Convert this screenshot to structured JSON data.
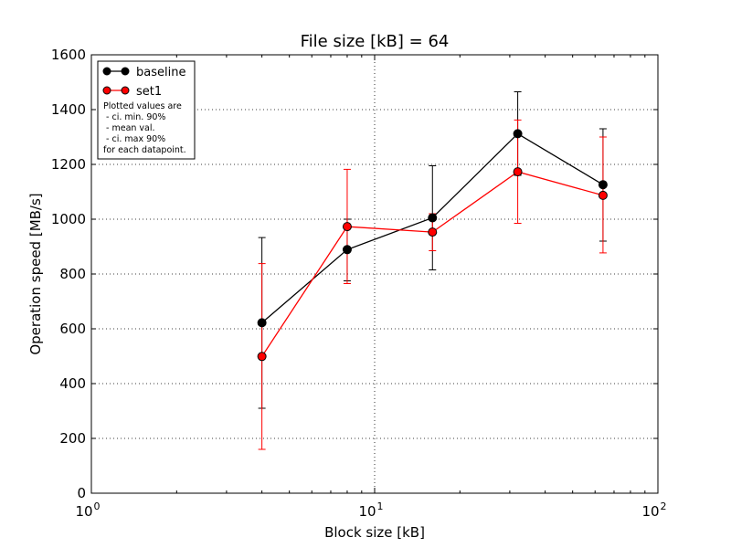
{
  "chart_data": {
    "type": "line",
    "title": "File size [kB] = 64",
    "xlabel": "Block size [kB]",
    "ylabel": "Operation speed [MB/s]",
    "xscale": "log",
    "xlim": [
      1,
      100
    ],
    "ylim": [
      0,
      1600
    ],
    "x_ticks": [
      1,
      10,
      100
    ],
    "x_tick_labels": [
      {
        "base": "10",
        "exp": "0"
      },
      {
        "base": "10",
        "exp": "1"
      },
      {
        "base": "10",
        "exp": "2"
      }
    ],
    "y_ticks": [
      0,
      200,
      400,
      600,
      800,
      1000,
      1200,
      1400,
      1600
    ],
    "y_tick_labels": [
      "0",
      "200",
      "400",
      "600",
      "800",
      "1000",
      "1200",
      "1400",
      "1600"
    ],
    "grid": true,
    "legend_position": "top-left",
    "x": [
      4,
      8,
      16,
      32,
      64
    ],
    "series": [
      {
        "name": "baseline",
        "color": "#000000",
        "values": [
          622,
          889,
          1005,
          1312,
          1126
        ],
        "err_low": [
          310,
          775,
          815,
          1160,
          920
        ],
        "err_high": [
          933,
          1000,
          1195,
          1465,
          1330
        ]
      },
      {
        "name": "set1",
        "color": "#ff0000",
        "values": [
          499,
          973,
          953,
          1173,
          1087
        ],
        "err_low": [
          160,
          765,
          885,
          985,
          877
        ],
        "err_high": [
          838,
          1182,
          1020,
          1362,
          1300
        ]
      }
    ],
    "legend_note": [
      "Plotted values are",
      " - ci. min. 90%",
      " - mean val.",
      " - ci. max 90%",
      "for each datapoint."
    ]
  }
}
